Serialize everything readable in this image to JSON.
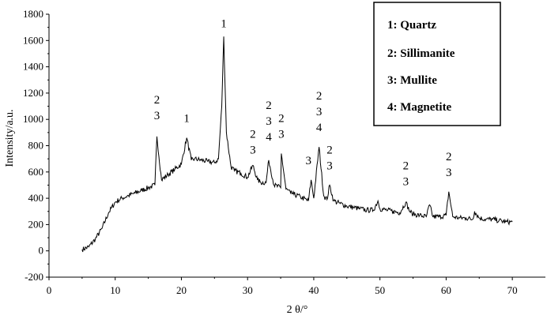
{
  "chart_data": {
    "type": "line",
    "title": "",
    "xlabel": "2 θ/°",
    "ylabel": "Intensity/a.u.",
    "xlim": [
      0,
      75
    ],
    "ylim": [
      -200,
      1800
    ],
    "xticks": [
      "0",
      "10",
      "20",
      "30",
      "40",
      "50",
      "60",
      "70"
    ],
    "yticks": [
      "-200",
      "0",
      "200",
      "400",
      "600",
      "800",
      "1000",
      "1200",
      "1400",
      "1600",
      "1800"
    ],
    "grid": false,
    "legend_position": "top-right",
    "legend": [
      "1: Quartz",
      "2: Sillimanite",
      "3: Mullite",
      "4: Magnetite"
    ],
    "series": [
      {
        "x": [
          5,
          6,
          7,
          8,
          9,
          10,
          11,
          12,
          13,
          14,
          15,
          16,
          16.3,
          17,
          18,
          19,
          20,
          20.8,
          21.5,
          22,
          23,
          24,
          25,
          25.6,
          26.1,
          26.4,
          26.8,
          27.5,
          28,
          29,
          30,
          30.8,
          31.5,
          32,
          32.8,
          33.2,
          34,
          35,
          35.1,
          35.8,
          36.5,
          37,
          38,
          39.2,
          39.6,
          40,
          40.8,
          41.5,
          42,
          42.4,
          43,
          44,
          45,
          46,
          47,
          48,
          49,
          49.7,
          50,
          51,
          52,
          53,
          53.9,
          54.5,
          55,
          56,
          57,
          57.5,
          58,
          59,
          60,
          60.4,
          61,
          62,
          63,
          64,
          64.3,
          65,
          66,
          67,
          68,
          69,
          70
        ],
        "y": [
          10,
          30,
          90,
          170,
          290,
          370,
          400,
          420,
          440,
          460,
          480,
          500,
          870,
          540,
          580,
          620,
          660,
          860,
          690,
          700,
          690,
          680,
          670,
          700,
          1100,
          1630,
          900,
          640,
          610,
          590,
          560,
          650,
          540,
          520,
          520,
          690,
          500,
          480,
          740,
          470,
          440,
          430,
          410,
          380,
          540,
          400,
          790,
          420,
          390,
          500,
          380,
          360,
          340,
          330,
          320,
          310,
          310,
          380,
          320,
          310,
          300,
          290,
          370,
          300,
          280,
          270,
          260,
          350,
          260,
          260,
          270,
          450,
          260,
          250,
          250,
          240,
          300,
          250,
          240,
          240,
          230,
          220,
          220
        ]
      }
    ],
    "annotations": [
      {
        "text": "2",
        "x": 16.3,
        "y": 1120
      },
      {
        "text": "3",
        "x": 16.3,
        "y": 1000
      },
      {
        "text": "1",
        "x": 20.8,
        "y": 980
      },
      {
        "text": "1",
        "x": 26.4,
        "y": 1700
      },
      {
        "text": "2",
        "x": 30.8,
        "y": 860
      },
      {
        "text": "3",
        "x": 30.8,
        "y": 740
      },
      {
        "text": "2",
        "x": 33.2,
        "y": 1080
      },
      {
        "text": "3",
        "x": 33.2,
        "y": 960
      },
      {
        "text": "4",
        "x": 33.2,
        "y": 840
      },
      {
        "text": "2",
        "x": 35.1,
        "y": 980
      },
      {
        "text": "3",
        "x": 35.1,
        "y": 860
      },
      {
        "text": "3",
        "x": 39.2,
        "y": 660
      },
      {
        "text": "2",
        "x": 40.8,
        "y": 1150
      },
      {
        "text": "3",
        "x": 40.8,
        "y": 1030
      },
      {
        "text": "4",
        "x": 40.8,
        "y": 910
      },
      {
        "text": "2",
        "x": 42.4,
        "y": 740
      },
      {
        "text": "3",
        "x": 42.4,
        "y": 620
      },
      {
        "text": "2",
        "x": 53.9,
        "y": 620
      },
      {
        "text": "3",
        "x": 53.9,
        "y": 500
      },
      {
        "text": "2",
        "x": 60.4,
        "y": 690
      },
      {
        "text": "3",
        "x": 60.4,
        "y": 570
      }
    ]
  }
}
